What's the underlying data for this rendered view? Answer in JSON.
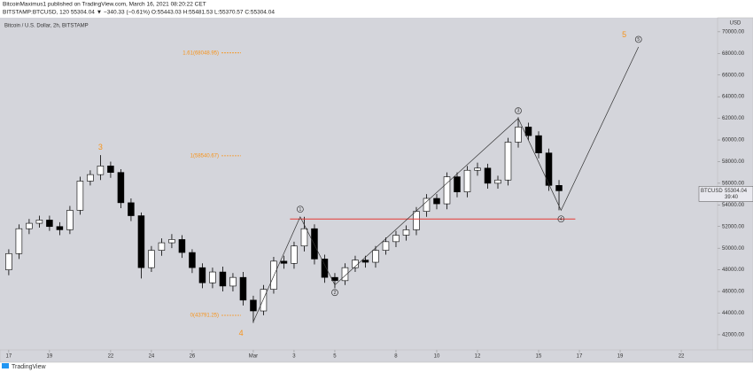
{
  "header": {
    "publisher": "BitcoinMaximus1 published on TradingView.com, March 16, 2021 08:20:22 CET",
    "symbol_line": "BITSTAMP:BTCUSD, 120  55304.04 ▼ −340.33 (−0.61%) O:55443.03 H:55481.53 L:55370.57 C:55304.04"
  },
  "footer": {
    "brand": "TradingView"
  },
  "chart_data": {
    "type": "candlestick",
    "title": "Bitcoin / U.S. Dollar, 2h, BITSTAMP",
    "currency": "USD",
    "x": [
      0,
      0.5,
      1,
      1.5,
      2,
      2.5,
      3,
      3.5,
      4,
      4.5,
      5,
      5.5,
      6,
      6.5,
      7,
      7.5,
      8,
      8.5,
      9,
      9.5,
      10,
      10.5,
      11,
      11.5,
      12,
      12.5,
      13,
      13.5,
      14,
      14.5,
      15,
      15.5,
      16,
      16.5,
      17,
      17.5,
      18,
      18.5,
      19,
      19.5,
      20,
      20.5,
      21,
      21.5,
      22,
      22.5,
      23,
      23.5,
      24,
      24.5,
      25,
      25.5,
      26,
      26.5,
      27
    ],
    "open": [
      48000,
      49500,
      51800,
      52300,
      52600,
      52000,
      51700,
      53500,
      56200,
      56800,
      57600,
      57000,
      54200,
      53000,
      48200,
      49800,
      50500,
      50800,
      49600,
      48200,
      46800,
      47800,
      46500,
      47300,
      45200,
      44200,
      46200,
      48800,
      48600,
      50200,
      51800,
      49000,
      47300,
      47000,
      48200,
      48900,
      48700,
      49800,
      50600,
      51200,
      51700,
      53400,
      54600,
      54100,
      56600,
      55200,
      57200,
      57400,
      56000,
      56300,
      59800,
      61200,
      60400,
      58800,
      55800
    ],
    "high": [
      49900,
      52200,
      52700,
      53000,
      53000,
      52400,
      53900,
      56600,
      57200,
      58600,
      58000,
      57300,
      54600,
      53300,
      50200,
      50900,
      51300,
      51200,
      49900,
      48600,
      48200,
      48300,
      47700,
      47800,
      45600,
      46600,
      49200,
      49300,
      50600,
      52900,
      52200,
      49400,
      47700,
      48600,
      49300,
      49300,
      50200,
      51000,
      51600,
      52100,
      53800,
      55000,
      55000,
      57000,
      57000,
      57600,
      57900,
      57800,
      56700,
      60200,
      62100,
      61600,
      60800,
      59200,
      56300
    ],
    "low": [
      47500,
      49000,
      51300,
      51900,
      51600,
      51200,
      51300,
      53100,
      55800,
      56300,
      56500,
      53700,
      52500,
      47200,
      47800,
      49300,
      50000,
      49100,
      47700,
      46300,
      46300,
      46000,
      46000,
      44700,
      43100,
      43800,
      45800,
      48100,
      48100,
      49700,
      48500,
      46800,
      46300,
      46600,
      47800,
      48200,
      48200,
      49400,
      50100,
      50700,
      51200,
      52900,
      53600,
      53600,
      54700,
      54700,
      56700,
      55500,
      55500,
      55800,
      59300,
      60000,
      58300,
      55300,
      53500
    ],
    "close": [
      49500,
      51800,
      52300,
      52600,
      52000,
      51700,
      53500,
      56200,
      56800,
      57600,
      57000,
      54200,
      53000,
      48200,
      49800,
      50500,
      50800,
      49600,
      48200,
      46800,
      47800,
      46500,
      47300,
      45200,
      44200,
      46200,
      48800,
      48600,
      50200,
      51800,
      49000,
      47300,
      47000,
      48200,
      48900,
      48700,
      49800,
      50600,
      51200,
      51700,
      53400,
      54600,
      54100,
      56600,
      55200,
      57200,
      57400,
      56000,
      56300,
      59800,
      61200,
      60400,
      58800,
      55800,
      55304.04
    ],
    "up_color": "#ffffff",
    "down_color": "#000000",
    "xlim": [
      -0.43,
      34.78
    ],
    "ylim": [
      40600,
      71300
    ],
    "xticks": [
      {
        "value": 0,
        "label": "17"
      },
      {
        "value": 2,
        "label": "19"
      },
      {
        "value": 5,
        "label": "22"
      },
      {
        "value": 7,
        "label": "24"
      },
      {
        "value": 9,
        "label": "26"
      },
      {
        "value": 12,
        "label": "Mar"
      },
      {
        "value": 14,
        "label": "3"
      },
      {
        "value": 16,
        "label": "5"
      },
      {
        "value": 19,
        "label": "8"
      },
      {
        "value": 21,
        "label": "10"
      },
      {
        "value": 23,
        "label": "12"
      },
      {
        "value": 26,
        "label": "15"
      },
      {
        "value": 28,
        "label": "17"
      },
      {
        "value": 30,
        "label": "19"
      },
      {
        "value": 33,
        "label": "22"
      }
    ],
    "yticks": [
      {
        "value": 42000,
        "label": "42000.00"
      },
      {
        "value": 44000,
        "label": "44000.00"
      },
      {
        "value": 46000,
        "label": "46000.00"
      },
      {
        "value": 48000,
        "label": "48000.00"
      },
      {
        "value": 50000,
        "label": "50000.00"
      },
      {
        "value": 52000,
        "label": "52000.00"
      },
      {
        "value": 54000,
        "label": "54000.00"
      },
      {
        "value": 56000,
        "label": "56000.00"
      },
      {
        "value": 58000,
        "label": "58000.00"
      },
      {
        "value": 60000,
        "label": "60000.00"
      },
      {
        "value": 62000,
        "label": "62000.00"
      },
      {
        "value": 64000,
        "label": "64000.00"
      },
      {
        "value": 66000,
        "label": "66000.00"
      },
      {
        "value": 68000,
        "label": "68000.00"
      },
      {
        "value": 70000,
        "label": "70000.00"
      }
    ],
    "price_line": {
      "symbol": "BTCUSD",
      "value": 55304.04,
      "countdown": "39:40"
    },
    "support_line": {
      "value": 52700,
      "x": [
        13.8,
        27.8
      ],
      "color": "#e53935"
    },
    "fib_color": "#f7931a",
    "fib_levels": [
      {
        "label": "1.61(68048.95)",
        "value": 68048.95
      },
      {
        "label": "1(58540.67)",
        "value": 58540.67
      },
      {
        "label": "0(43791.25)",
        "value": 43791.25
      }
    ],
    "wave_path": {
      "x": [
        12,
        14.3,
        16,
        25,
        27.1,
        30.9
      ],
      "y": [
        43200,
        52900,
        46600,
        62000,
        53500,
        68600
      ]
    },
    "wave_counts": [
      {
        "label": "1",
        "x": 14.3,
        "y": 53600
      },
      {
        "label": "2",
        "x": 16,
        "y": 45900
      },
      {
        "label": "3",
        "x": 25,
        "y": 62700
      },
      {
        "label": "4",
        "x": 27.1,
        "y": 52700
      },
      {
        "label": "5",
        "x": 30.9,
        "y": 69300
      }
    ],
    "degree_labels": [
      {
        "label": "3",
        "x": 4.5,
        "y": 59300
      },
      {
        "label": "4",
        "x": 11.4,
        "y": 42100
      },
      {
        "label": "5",
        "x": 30.2,
        "y": 69700
      }
    ]
  }
}
